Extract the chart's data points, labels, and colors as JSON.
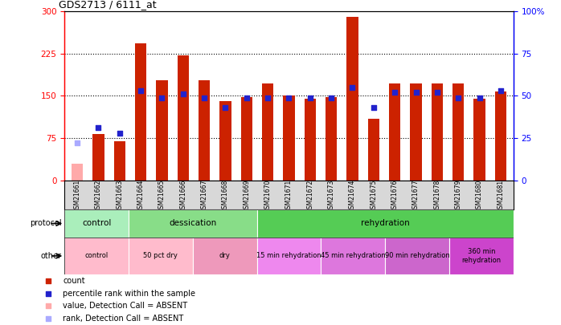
{
  "title": "GDS2713 / 6111_at",
  "samples": [
    "GSM21661",
    "GSM21662",
    "GSM21663",
    "GSM21664",
    "GSM21665",
    "GSM21666",
    "GSM21667",
    "GSM21668",
    "GSM21669",
    "GSM21670",
    "GSM21671",
    "GSM21672",
    "GSM21673",
    "GSM21674",
    "GSM21675",
    "GSM21676",
    "GSM21677",
    "GSM21678",
    "GSM21679",
    "GSM21680",
    "GSM21681"
  ],
  "count_values": [
    30,
    82,
    70,
    243,
    178,
    222,
    178,
    140,
    148,
    172,
    150,
    145,
    148,
    290,
    110,
    172,
    172,
    172,
    172,
    145,
    158
  ],
  "percentile_values": [
    22,
    31,
    28,
    53,
    49,
    51,
    49,
    43,
    49,
    49,
    49,
    49,
    49,
    55,
    43,
    52,
    52,
    52,
    49,
    49,
    53
  ],
  "absent_flags": [
    true,
    false,
    false,
    false,
    false,
    false,
    false,
    false,
    false,
    false,
    false,
    false,
    false,
    false,
    false,
    false,
    false,
    false,
    false,
    false,
    false
  ],
  "absent_rank_flags": [
    true,
    false,
    false,
    false,
    false,
    false,
    false,
    false,
    false,
    false,
    false,
    false,
    false,
    false,
    false,
    false,
    false,
    false,
    false,
    false,
    false
  ],
  "yticks_left": [
    0,
    75,
    150,
    225,
    300
  ],
  "yticks_right": [
    0,
    25,
    50,
    75,
    100
  ],
  "bar_color": "#cc2200",
  "dot_color": "#2222cc",
  "absent_bar_color": "#ffaaaa",
  "absent_dot_color": "#aaaaff",
  "protocol_row": [
    {
      "label": "control",
      "color": "#aaeebb",
      "start": 0,
      "end": 3
    },
    {
      "label": "dessication",
      "color": "#88dd88",
      "start": 3,
      "end": 9
    },
    {
      "label": "rehydration",
      "color": "#55cc55",
      "start": 9,
      "end": 21
    }
  ],
  "other_row": [
    {
      "label": "control",
      "color": "#ffbbcc",
      "start": 0,
      "end": 3
    },
    {
      "label": "50 pct dry",
      "color": "#ffbbcc",
      "start": 3,
      "end": 6
    },
    {
      "label": "dry",
      "color": "#ee99bb",
      "start": 6,
      "end": 9
    },
    {
      "label": "15 min rehydration",
      "color": "#ee88ee",
      "start": 9,
      "end": 12
    },
    {
      "label": "45 min rehydration",
      "color": "#dd77dd",
      "start": 12,
      "end": 15
    },
    {
      "label": "90 min rehydration",
      "color": "#cc66cc",
      "start": 15,
      "end": 18
    },
    {
      "label": "360 min\nrehydration",
      "color": "#cc44cc",
      "start": 18,
      "end": 21
    }
  ],
  "legend_items": [
    {
      "color": "#cc2200",
      "label": "count"
    },
    {
      "color": "#2222cc",
      "label": "percentile rank within the sample"
    },
    {
      "color": "#ffaaaa",
      "label": "value, Detection Call = ABSENT"
    },
    {
      "color": "#aaaaff",
      "label": "rank, Detection Call = ABSENT"
    }
  ]
}
